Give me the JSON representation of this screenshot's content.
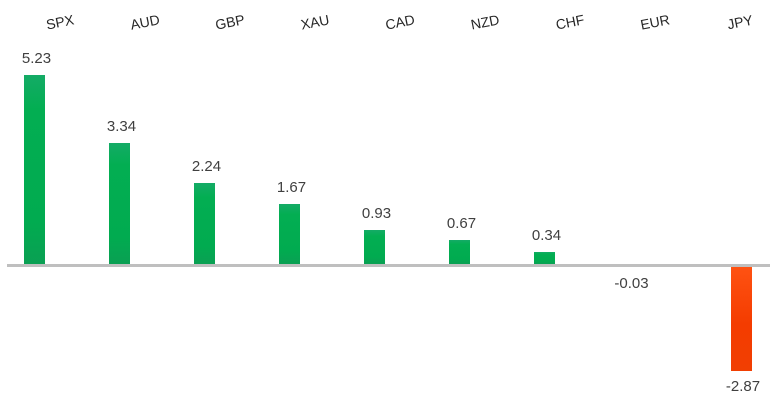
{
  "chart_data": {
    "type": "bar",
    "categories": [
      "SPX",
      "AUD",
      "GBP",
      "XAU",
      "CAD",
      "NZD",
      "CHF",
      "EUR",
      "JPY"
    ],
    "values": [
      5.23,
      3.34,
      2.24,
      1.67,
      0.93,
      0.67,
      0.34,
      -0.03,
      -2.87
    ],
    "value_labels": [
      "5.23",
      "3.34",
      "2.24",
      "1.67",
      "0.93",
      "0.67",
      "0.34",
      "-0.03",
      "-2.87"
    ],
    "title": "",
    "xlabel": "",
    "ylabel": "",
    "baseline": 0,
    "grid": false,
    "legend": false,
    "category_label_position": "top",
    "category_label_rotation_deg": -11,
    "colors": {
      "positive_bar": "#01AB50",
      "negative_bar": "#F43C00",
      "axis_line": "#BFBFBF",
      "value_label": "#404040",
      "category_label": "#262626"
    }
  }
}
